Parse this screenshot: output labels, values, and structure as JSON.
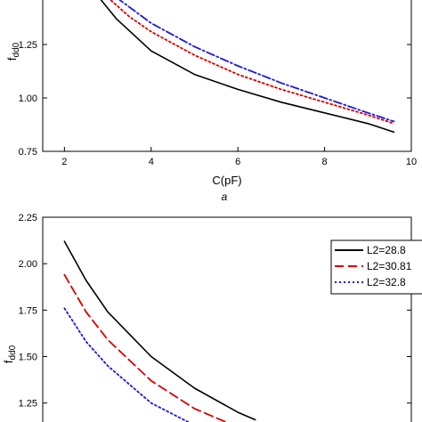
{
  "chart_data": [
    {
      "type": "line",
      "panel_label": "a",
      "xlabel": "C(pF)",
      "ylabel_main": "f",
      "ylabel_sub": "dd0",
      "xlim": [
        1.5,
        10
      ],
      "ylim": [
        0.75,
        1.5
      ],
      "xticks": [
        2,
        4,
        6,
        8,
        10
      ],
      "xtick_labels": [
        "2",
        "4",
        "6",
        "8",
        "10"
      ],
      "yticks": [
        0.75,
        1.0,
        1.25
      ],
      "ytick_labels": [
        "0.75",
        "1.00",
        "1.25"
      ],
      "grid": false,
      "series": [
        {
          "color": "#000000",
          "dash": "solid",
          "x": [
            2.8,
            3.2,
            4,
            5,
            6,
            7,
            8,
            9,
            9.6
          ],
          "y": [
            1.47,
            1.37,
            1.22,
            1.11,
            1.04,
            0.98,
            0.93,
            0.88,
            0.84
          ]
        },
        {
          "color": "#d40000",
          "dash": "dot",
          "x": [
            3.0,
            3.5,
            4,
            5,
            6,
            7,
            8,
            9,
            9.6
          ],
          "y": [
            1.47,
            1.38,
            1.31,
            1.2,
            1.11,
            1.04,
            0.98,
            0.92,
            0.88
          ]
        },
        {
          "color": "#1a1ad4",
          "dash": "dashdot",
          "x": [
            3.2,
            3.6,
            4,
            5,
            6,
            7,
            8,
            9,
            9.6
          ],
          "y": [
            1.47,
            1.41,
            1.35,
            1.24,
            1.15,
            1.07,
            1.0,
            0.93,
            0.89
          ]
        }
      ]
    },
    {
      "type": "line",
      "ylabel_main": "f",
      "ylabel_sub": "dd0",
      "xlim": [
        1.5,
        10
      ],
      "ylim": [
        1.1,
        2.25
      ],
      "yticks": [
        1.25,
        1.5,
        1.75,
        2.0,
        2.25
      ],
      "ytick_labels": [
        "1.25",
        "1.50",
        "1.75",
        "2.00",
        "2.25"
      ],
      "grid": false,
      "legend_position": "top-right",
      "series": [
        {
          "name": "L2=28.8",
          "color": "#000000",
          "dash": "solid",
          "x": [
            2.0,
            2.5,
            3,
            4,
            5,
            6,
            6.4
          ],
          "y": [
            2.12,
            1.91,
            1.74,
            1.5,
            1.33,
            1.2,
            1.16
          ]
        },
        {
          "name": "L2=30.81",
          "color": "#d40000",
          "dash": "longdash",
          "x": [
            2.0,
            2.5,
            3,
            4,
            5,
            6
          ],
          "y": [
            1.94,
            1.74,
            1.59,
            1.37,
            1.22,
            1.12
          ]
        },
        {
          "name": "L2=32.8",
          "color": "#1a1ad4",
          "dash": "dot",
          "x": [
            2.0,
            2.5,
            3,
            4,
            5,
            5.5
          ],
          "y": [
            1.76,
            1.58,
            1.45,
            1.25,
            1.13,
            1.08
          ]
        }
      ]
    }
  ]
}
